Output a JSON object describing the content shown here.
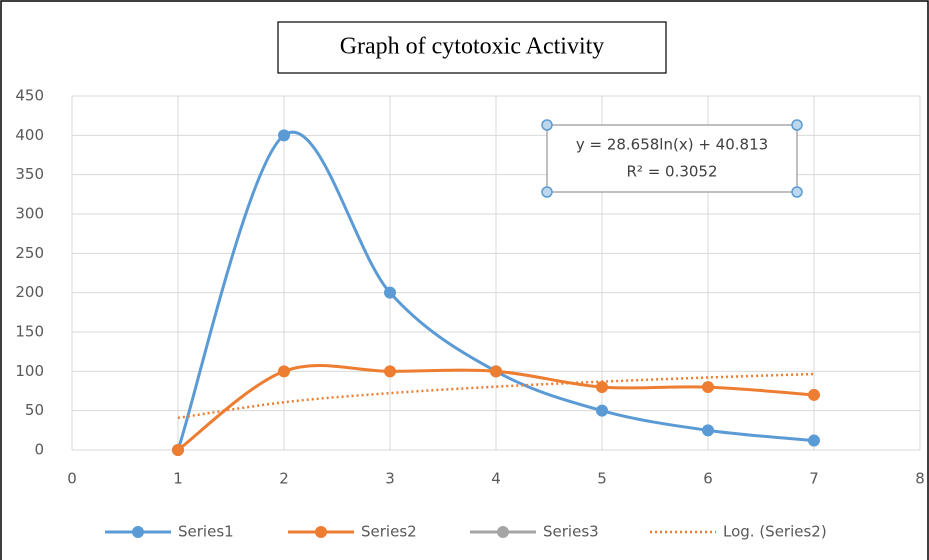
{
  "chart_data": {
    "type": "line",
    "title": "Graph of cytotoxic Activity",
    "x": [
      1,
      2,
      3,
      4,
      5,
      6,
      7
    ],
    "series": [
      {
        "name": "Series1",
        "color": "#5b9bd5",
        "marker": true,
        "dash": "solid",
        "values": [
          0,
          400,
          200,
          100,
          50,
          25,
          12
        ]
      },
      {
        "name": "Series2",
        "color": "#ed7d31",
        "marker": true,
        "dash": "solid",
        "values": [
          0,
          100,
          100,
          100,
          80,
          80,
          70
        ]
      },
      {
        "name": "Series3",
        "color": "#a5a5a5",
        "marker": true,
        "dash": "solid",
        "values": [
          null,
          null,
          null,
          null,
          null,
          null,
          null
        ]
      },
      {
        "name": "Log. (Series2)",
        "color": "#ed7d31",
        "marker": false,
        "dash": "dotted",
        "values": [
          40.8,
          60.7,
          72.3,
          80.5,
          86.9,
          92.2,
          96.6
        ]
      }
    ],
    "annotations": [
      "y = 28.658ln(x) + 40.813",
      "R² = 0.3052"
    ],
    "xlim": [
      0,
      8
    ],
    "xticks": [
      0,
      1,
      2,
      3,
      4,
      5,
      6,
      7,
      8
    ],
    "ylim": [
      0,
      450
    ],
    "yticks": [
      0,
      50,
      100,
      150,
      200,
      250,
      300,
      350,
      400,
      450
    ],
    "grid": true,
    "legend": "bottom"
  }
}
